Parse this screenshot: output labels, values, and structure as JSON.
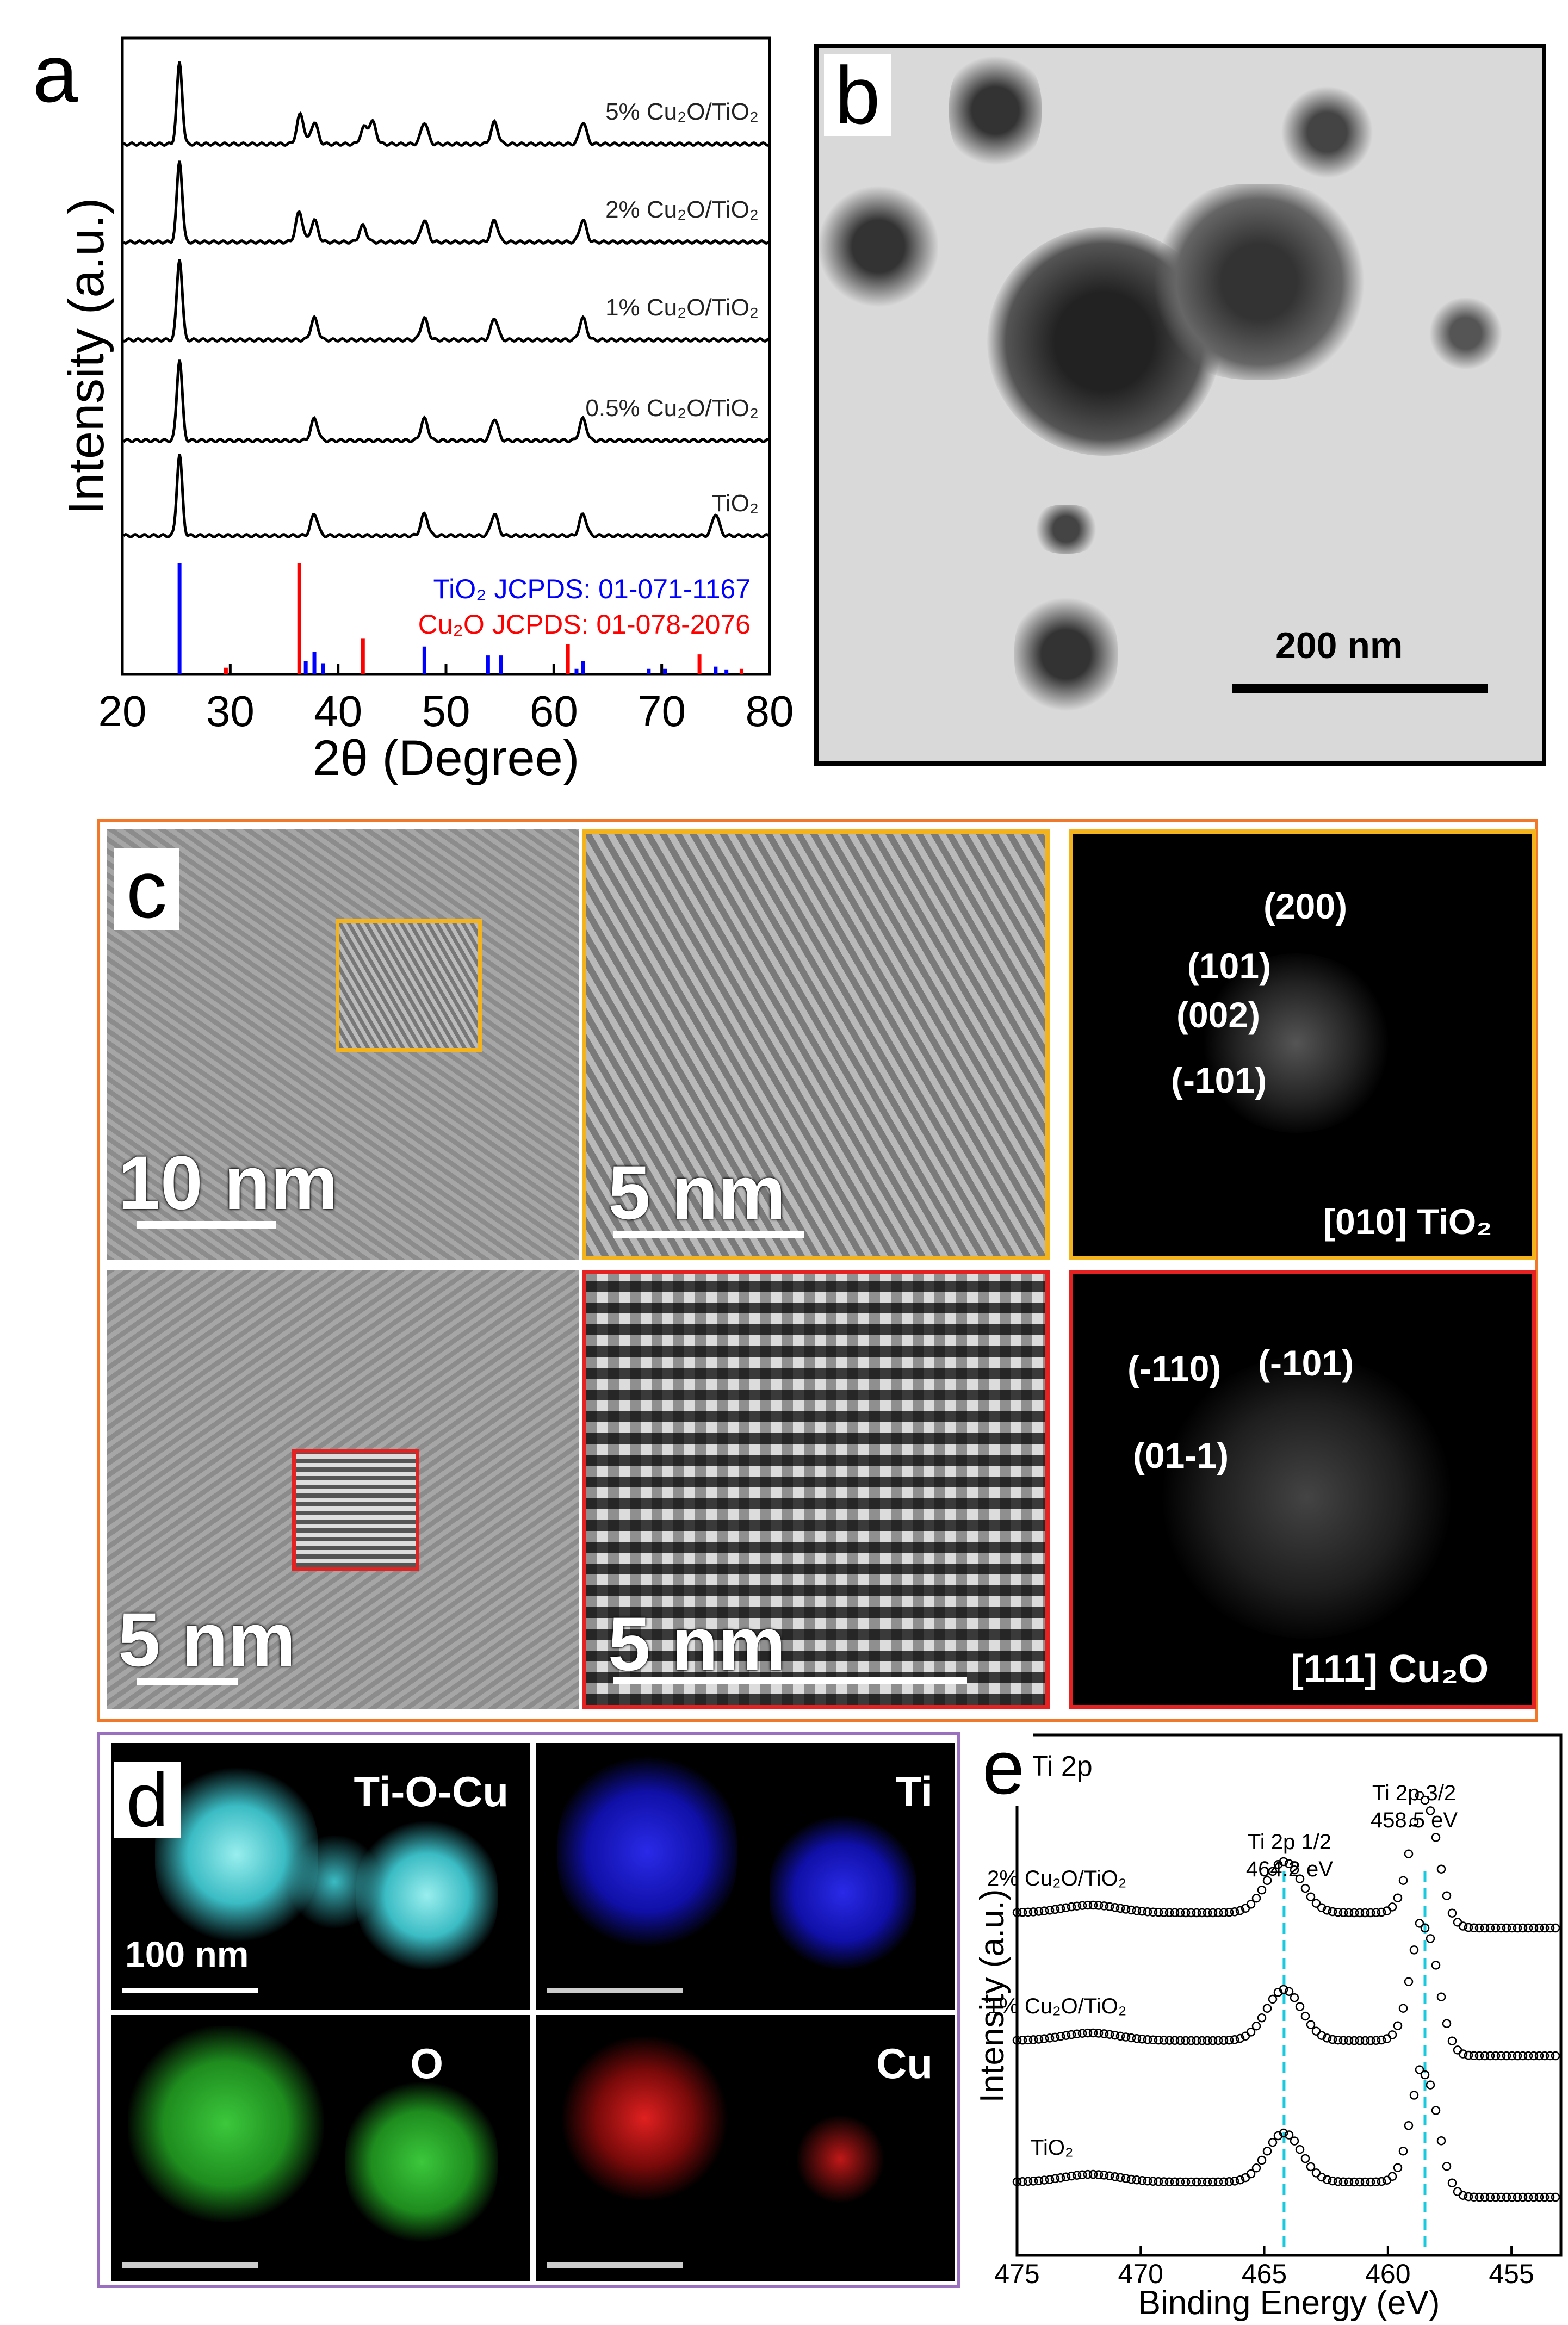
{
  "panels": {
    "a": {
      "label": "a"
    },
    "b": {
      "label": "b",
      "scale": "200 nm"
    },
    "c": {
      "label": "c",
      "scales": [
        "10 nm",
        "5 nm",
        "5 nm",
        "5 nm"
      ],
      "fft_tio2": {
        "spots": [
          "(200)",
          "(101)",
          "(002)",
          "(-101)"
        ],
        "zone": "[010] TiO₂"
      },
      "fft_cu2o": {
        "spots": [
          "(-110)",
          "(-101)",
          "(01-1)"
        ],
        "zone": "[111]  Cu₂O"
      }
    },
    "d": {
      "label": "d",
      "maps": [
        "Ti-O-Cu",
        "Ti",
        "O",
        "Cu"
      ],
      "scale": "100 nm"
    },
    "e": {
      "label": "e"
    }
  },
  "chart_data": [
    {
      "type": "line",
      "panel": "a",
      "xlabel": "2θ (Degree)",
      "ylabel": "Intensity (a.u.)",
      "xlim": [
        20,
        80
      ],
      "xticks": [
        20,
        30,
        40,
        50,
        60,
        70,
        80
      ],
      "series": [
        {
          "name": "5% Cu₂O/TiO₂",
          "peaks": [
            25.3,
            36.5,
            37.8,
            42.4,
            43.2,
            48.0,
            54.5,
            62.7
          ]
        },
        {
          "name": "2% Cu₂O/TiO₂",
          "peaks": [
            25.3,
            36.4,
            37.8,
            42.3,
            48.0,
            54.5,
            62.7
          ]
        },
        {
          "name": "1% Cu₂O/TiO₂",
          "peaks": [
            25.3,
            37.8,
            48.0,
            54.5,
            62.7
          ]
        },
        {
          "name": "0.5% Cu₂O/TiO₂",
          "peaks": [
            25.3,
            37.8,
            48.0,
            54.5,
            62.7
          ]
        },
        {
          "name": "TiO₂",
          "peaks": [
            25.3,
            37.8,
            48.0,
            54.5,
            62.7,
            75.0
          ]
        }
      ],
      "references": [
        {
          "name": "TiO₂ JCPDS: 01-071-1167",
          "color": "#0000ff",
          "lines": [
            [
              25.3,
              1.0
            ],
            [
              37.0,
              0.12
            ],
            [
              37.8,
              0.2
            ],
            [
              38.6,
              0.1
            ],
            [
              48.0,
              0.25
            ],
            [
              53.9,
              0.17
            ],
            [
              55.1,
              0.17
            ],
            [
              62.1,
              0.05
            ],
            [
              62.7,
              0.12
            ],
            [
              68.8,
              0.05
            ],
            [
              70.3,
              0.05
            ],
            [
              75.0,
              0.07
            ],
            [
              76.0,
              0.04
            ]
          ]
        },
        {
          "name": "Cu₂O JCPDS: 01-078-2076",
          "color": "#ff0000",
          "lines": [
            [
              29.6,
              0.06
            ],
            [
              36.4,
              1.0
            ],
            [
              42.3,
              0.32
            ],
            [
              61.3,
              0.27
            ],
            [
              73.5,
              0.18
            ],
            [
              77.4,
              0.05
            ]
          ]
        }
      ]
    },
    {
      "type": "scatter",
      "panel": "e",
      "title": "Ti 2p",
      "xlabel": "Binding Energy (eV)",
      "ylabel": "Intensity (a.u.)",
      "xlim": [
        475,
        453
      ],
      "xticks": [
        475,
        470,
        465,
        460,
        455
      ],
      "series": [
        {
          "name": "2% Cu₂O/TiO₂",
          "peaks": [
            464.2,
            458.5
          ]
        },
        {
          "name": "1% Cu₂O/TiO₂",
          "peaks": [
            464.2,
            458.5
          ]
        },
        {
          "name": "TiO₂",
          "peaks": [
            464.2,
            458.5
          ]
        }
      ],
      "annotations": [
        {
          "text": "Ti 2p 1/2",
          "value": "464.2 eV",
          "x": 464.2
        },
        {
          "text": "Ti 2p 3/2",
          "value": "458.5 eV",
          "x": 458.5
        }
      ]
    }
  ]
}
